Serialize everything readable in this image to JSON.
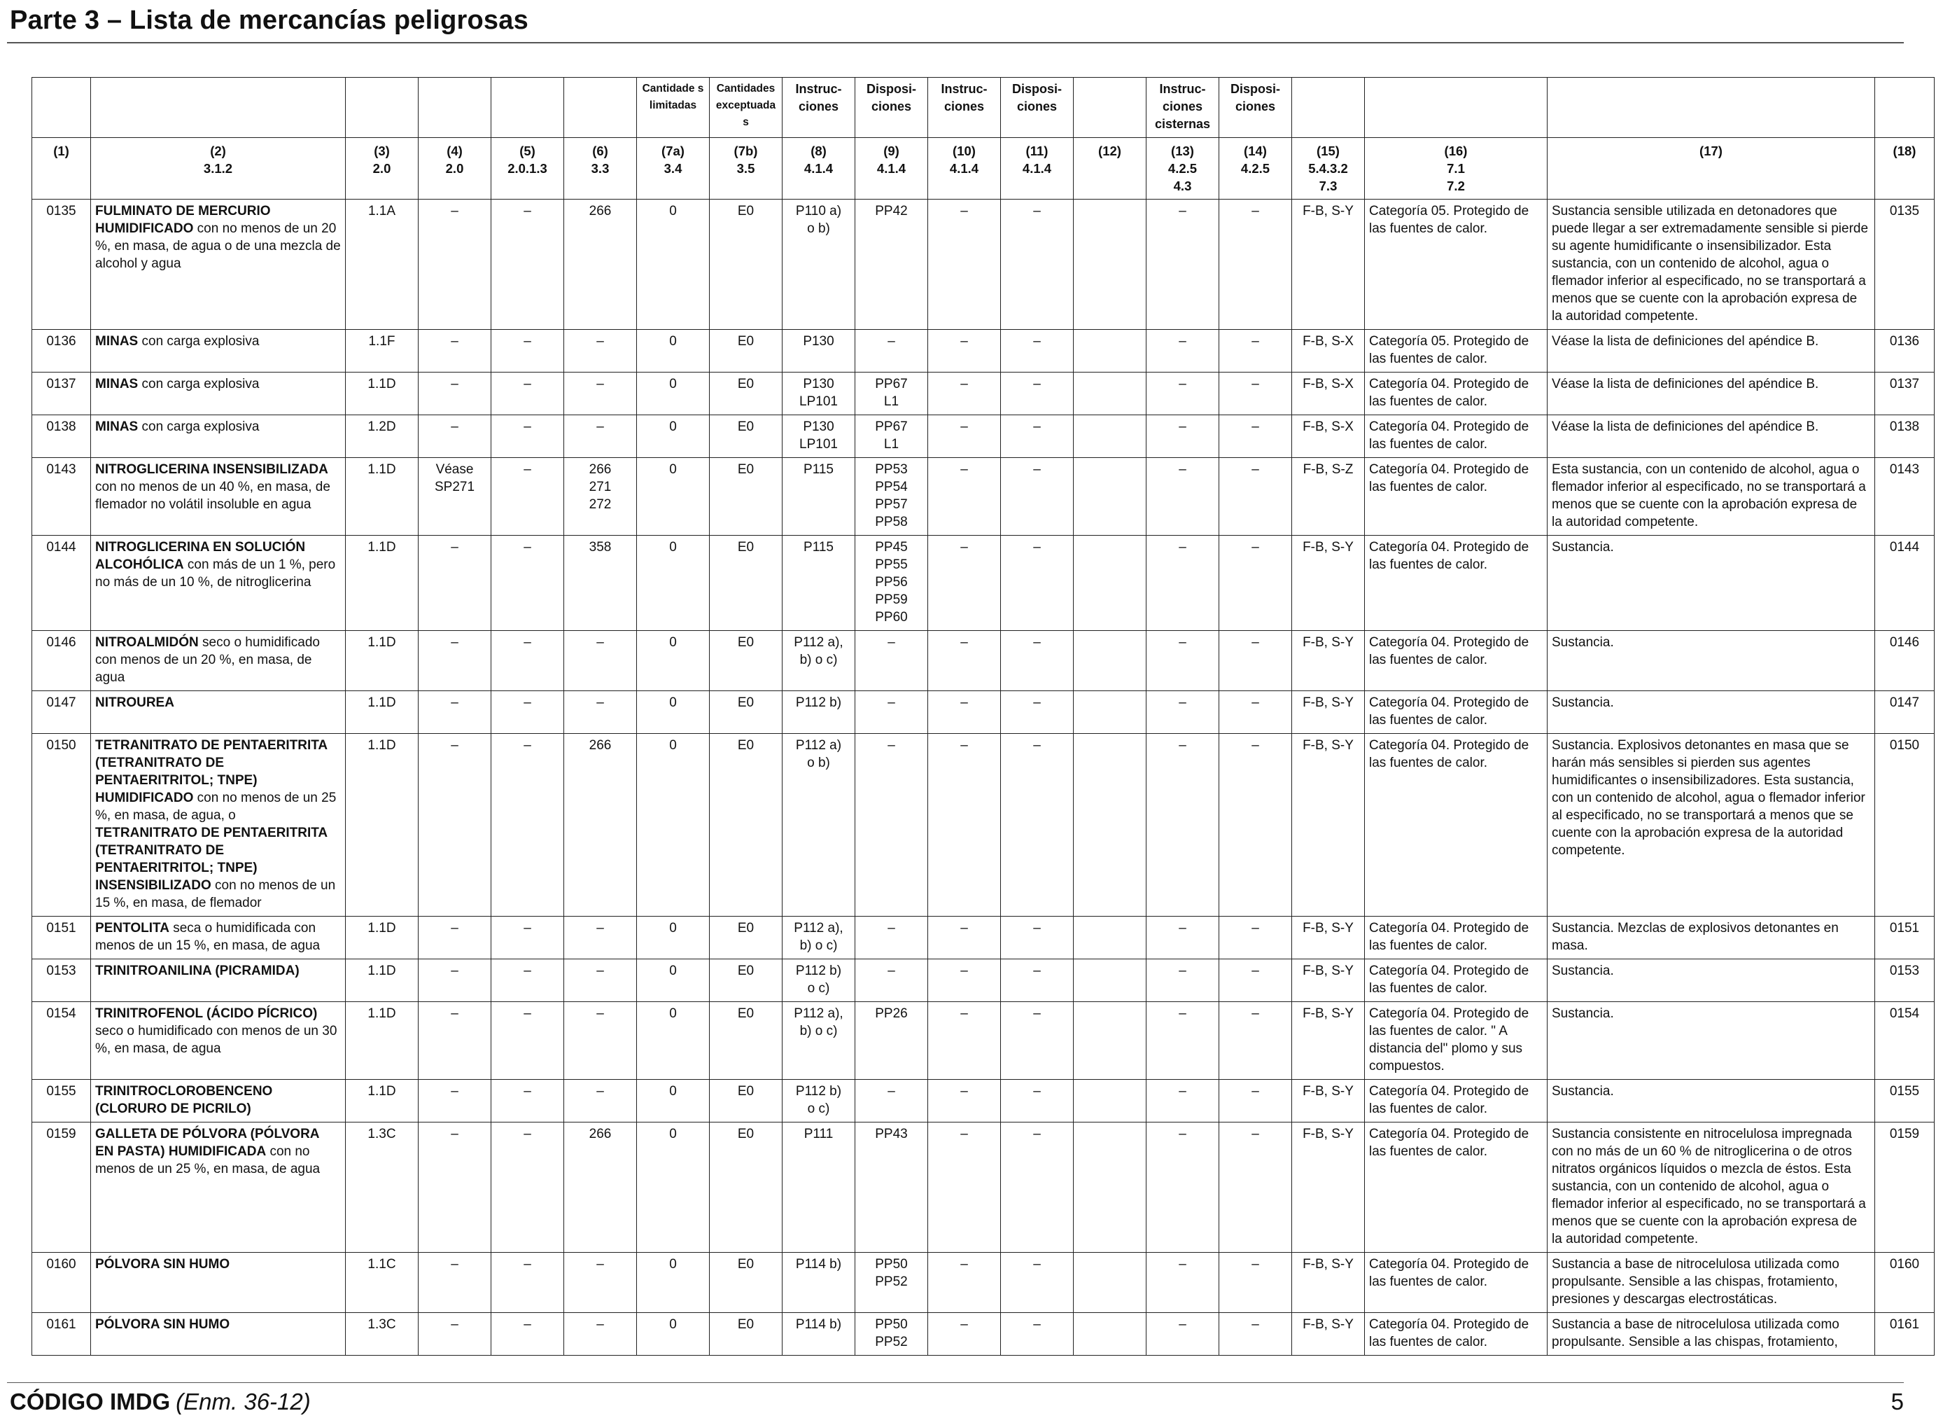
{
  "page": {
    "title": "Parte 3 – Lista de mercancías peligrosas",
    "footer_code": "CÓDIGO IMDG",
    "footer_amendment": "(Enm. 36-12)",
    "page_number": "5"
  },
  "table": {
    "header_titles": [
      "",
      "",
      "",
      "",
      "",
      "",
      "Cantidade s limitadas",
      "Cantidades exceptuadas",
      "Instruc- ciones",
      "Disposi- ciones",
      "Instruc- ciones",
      "Disposi- ciones",
      "",
      "Instruc- ciones cisternas",
      "Disposi- ciones",
      "",
      "",
      "",
      ""
    ],
    "header_numbers": [
      "(1)",
      "(2)\n3.1.2",
      "(3)\n2.0",
      "(4)\n2.0",
      "(5)\n2.0.1.3",
      "(6)\n3.3",
      "(7a)\n3.4",
      "(7b)\n3.5",
      "(8)\n4.1.4",
      "(9)\n4.1.4",
      "(10)\n4.1.4",
      "(11)\n4.1.4",
      "(12)",
      "(13)\n4.2.5\n4.3",
      "(14)\n4.2.5",
      "(15)\n5.4.3.2\n7.3",
      "(16)\n7.1\n7.2",
      "(17)",
      "(18)"
    ],
    "rows": [
      {
        "un": "0135",
        "name_bold": "FULMINATO DE MERCURIO HUMIDIFICADO",
        "name_rest": " con no menos de un 20 %, en masa, de agua o de una mezcla de alcohol y agua",
        "cls": "1.1A",
        "sub": "–",
        "mp": "–",
        "sp": "266",
        "lq": "0",
        "eq": "E0",
        "pi": "P110 a)\no b)",
        "pp": "PP42",
        "ibc": "–",
        "ibcp": "–",
        "c12": "",
        "tank": "–",
        "tankp": "–",
        "ems": "F-B, S-Y",
        "stow": "Categoría 05. Protegido de las fuentes de calor.",
        "props": "Sustancia sensible utilizada en detonadores que puede llegar a ser extremadamente sensible si pierde su agente humidificante o insensibilizador. Esta sustancia, con un contenido de alcohol, agua o flemador inferior al especificado, no se transportará a menos que se cuente con la aprobación expresa de la autoridad competente.",
        "un2": "0135"
      },
      {
        "un": "0136",
        "name_bold": "MINAS",
        "name_rest": " con carga explosiva",
        "cls": "1.1F",
        "sub": "–",
        "mp": "–",
        "sp": "–",
        "lq": "0",
        "eq": "E0",
        "pi": "P130",
        "pp": "–",
        "ibc": "–",
        "ibcp": "–",
        "c12": "",
        "tank": "–",
        "tankp": "–",
        "ems": "F-B, S-X",
        "stow": "Categoría 05. Protegido de las fuentes de calor.",
        "props": "Véase la lista de definiciones del apéndice B.",
        "un2": "0136"
      },
      {
        "un": "0137",
        "name_bold": "MINAS",
        "name_rest": " con carga explosiva",
        "cls": "1.1D",
        "sub": "–",
        "mp": "–",
        "sp": "–",
        "lq": "0",
        "eq": "E0",
        "pi": "P130\nLP101",
        "pp": "PP67\nL1",
        "ibc": "–",
        "ibcp": "–",
        "c12": "",
        "tank": "–",
        "tankp": "–",
        "ems": "F-B, S-X",
        "stow": "Categoría 04. Protegido de las fuentes de calor.",
        "props": "Véase la lista de definiciones del apéndice B.",
        "un2": "0137"
      },
      {
        "un": "0138",
        "name_bold": "MINAS",
        "name_rest": " con carga explosiva",
        "cls": "1.2D",
        "sub": "–",
        "mp": "–",
        "sp": "–",
        "lq": "0",
        "eq": "E0",
        "pi": "P130\nLP101",
        "pp": "PP67\nL1",
        "ibc": "–",
        "ibcp": "–",
        "c12": "",
        "tank": "–",
        "tankp": "–",
        "ems": "F-B, S-X",
        "stow": "Categoría 04. Protegido de las fuentes de calor.",
        "props": "Véase la lista de definiciones del apéndice B.",
        "un2": "0138"
      },
      {
        "un": "0143",
        "name_bold": "NITROGLICERINA INSENSIBILIZADA",
        "name_rest": " con no menos de un 40 %, en masa, de flemador no volátil insoluble en agua",
        "cls": "1.1D",
        "sub": "Véase\nSP271",
        "mp": "–",
        "sp": "266\n271\n272",
        "lq": "0",
        "eq": "E0",
        "pi": "P115",
        "pp": "PP53\nPP54\nPP57\nPP58",
        "ibc": "–",
        "ibcp": "–",
        "c12": "",
        "tank": "–",
        "tankp": "–",
        "ems": "F-B, S-Z",
        "stow": "Categoría 04. Protegido de las fuentes de calor.",
        "props": "Esta sustancia, con un contenido de alcohol, agua o flemador inferior al especificado, no se transportará a menos que se cuente con la aprobación expresa de la autoridad competente.",
        "un2": "0143"
      },
      {
        "un": "0144",
        "name_bold": "NITROGLICERINA EN SOLUCIÓN ALCOHÓLICA",
        "name_rest": " con más de un 1 %, pero no más de un 10 %, de nitroglicerina",
        "cls": "1.1D",
        "sub": "–",
        "mp": "–",
        "sp": "358",
        "lq": "0",
        "eq": "E0",
        "pi": "P115",
        "pp": "PP45\nPP55\nPP56\nPP59\nPP60",
        "ibc": "–",
        "ibcp": "–",
        "c12": "",
        "tank": "–",
        "tankp": "–",
        "ems": "F-B, S-Y",
        "stow": "Categoría 04. Protegido de las fuentes de calor.",
        "props": "Sustancia.",
        "un2": "0144"
      },
      {
        "un": "0146",
        "name_bold": "NITROALMIDÓN",
        "name_rest": " seco o humidificado con menos de un 20 %, en masa, de agua",
        "cls": "1.1D",
        "sub": "–",
        "mp": "–",
        "sp": "–",
        "lq": "0",
        "eq": "E0",
        "pi": "P112 a),\nb) o c)",
        "pp": "–",
        "ibc": "–",
        "ibcp": "–",
        "c12": "",
        "tank": "–",
        "tankp": "–",
        "ems": "F-B, S-Y",
        "stow": "Categoría 04. Protegido de las fuentes de calor.",
        "props": "Sustancia.",
        "un2": "0146"
      },
      {
        "un": "0147",
        "name_bold": "NITROUREA",
        "name_rest": "",
        "cls": "1.1D",
        "sub": "–",
        "mp": "–",
        "sp": "–",
        "lq": "0",
        "eq": "E0",
        "pi": "P112 b)",
        "pp": "–",
        "ibc": "–",
        "ibcp": "–",
        "c12": "",
        "tank": "–",
        "tankp": "–",
        "ems": "F-B, S-Y",
        "stow": "Categoría 04. Protegido de las fuentes de calor.",
        "props": "Sustancia.",
        "un2": "0147"
      },
      {
        "un": "0150",
        "name_bold": "TETRANITRATO DE PENTAERITRITA (TETRANITRATO DE PENTAERITRITOL; TNPE) HUMIDIFICADO",
        "name_rest": " con no menos de un 25 %, en masa, de agua, o ",
        "name_bold2": "TETRANITRATO DE PENTAERITRITA (TETRANITRATO DE PENTAERITRITOL; TNPE) INSENSIBILIZADO",
        "name_rest2": " con no menos de un 15 %, en masa, de flemador",
        "cls": "1.1D",
        "sub": "–",
        "mp": "–",
        "sp": "266",
        "lq": "0",
        "eq": "E0",
        "pi": "P112 a)\no b)",
        "pp": "–",
        "ibc": "–",
        "ibcp": "–",
        "c12": "",
        "tank": "–",
        "tankp": "–",
        "ems": "F-B, S-Y",
        "stow": "Categoría 04. Protegido de las fuentes de calor.",
        "props": "Sustancia. Explosivos detonantes en masa que se harán más sensibles si pierden sus agentes humidificantes o insensibilizadores. Esta sustancia, con un contenido de alcohol, agua o flemador inferior al especificado, no se transportará a menos que se cuente con la aprobación expresa de la autoridad competente.",
        "un2": "0150"
      },
      {
        "un": "0151",
        "name_bold": "PENTOLITA",
        "name_rest": " seca o humidificada con menos de un 15 %, en masa, de agua",
        "cls": "1.1D",
        "sub": "–",
        "mp": "–",
        "sp": "–",
        "lq": "0",
        "eq": "E0",
        "pi": "P112 a),\nb) o c)",
        "pp": "–",
        "ibc": "–",
        "ibcp": "–",
        "c12": "",
        "tank": "–",
        "tankp": "–",
        "ems": "F-B, S-Y",
        "stow": "Categoría 04. Protegido de las fuentes de calor.",
        "props": "Sustancia. Mezclas de explosivos detonantes en masa.",
        "un2": "0151"
      },
      {
        "un": "0153",
        "name_bold": "TRINITROANILINA (PICRAMIDA)",
        "name_rest": "",
        "cls": "1.1D",
        "sub": "–",
        "mp": "–",
        "sp": "–",
        "lq": "0",
        "eq": "E0",
        "pi": "P112 b)\no c)",
        "pp": "–",
        "ibc": "–",
        "ibcp": "–",
        "c12": "",
        "tank": "–",
        "tankp": "–",
        "ems": "F-B, S-Y",
        "stow": "Categoría 04. Protegido de las fuentes de calor.",
        "props": "Sustancia.",
        "un2": "0153"
      },
      {
        "un": "0154",
        "name_bold": "TRINITROFENOL (ÁCIDO PÍCRICO)",
        "name_rest": " seco o humidificado con menos de un 30 %, en masa, de agua",
        "cls": "1.1D",
        "sub": "–",
        "mp": "–",
        "sp": "–",
        "lq": "0",
        "eq": "E0",
        "pi": "P112 a),\nb) o c)",
        "pp": "PP26",
        "ibc": "–",
        "ibcp": "–",
        "c12": "",
        "tank": "–",
        "tankp": "–",
        "ems": "F-B, S-Y",
        "stow": "Categoría 04. Protegido de las fuentes de calor. \" A distancia del\" plomo y sus compuestos.",
        "props": "Sustancia.",
        "un2": "0154"
      },
      {
        "un": "0155",
        "name_bold": "TRINITROCLOROBENCENO (CLORURO DE PICRILO)",
        "name_rest": "",
        "cls": "1.1D",
        "sub": "–",
        "mp": "–",
        "sp": "–",
        "lq": "0",
        "eq": "E0",
        "pi": "P112 b)\no c)",
        "pp": "–",
        "ibc": "–",
        "ibcp": "–",
        "c12": "",
        "tank": "–",
        "tankp": "–",
        "ems": "F-B, S-Y",
        "stow": "Categoría 04. Protegido de las fuentes de calor.",
        "props": "Sustancia.",
        "un2": "0155"
      },
      {
        "un": "0159",
        "name_bold": "GALLETA DE PÓLVORA (PÓLVORA EN PASTA) HUMIDIFICADA",
        "name_rest": " con no menos de un 25 %, en masa, de agua",
        "cls": "1.3C",
        "sub": "–",
        "mp": "–",
        "sp": "266",
        "lq": "0",
        "eq": "E0",
        "pi": "P111",
        "pp": "PP43",
        "ibc": "–",
        "ibcp": "–",
        "c12": "",
        "tank": "–",
        "tankp": "–",
        "ems": "F-B, S-Y",
        "stow": "Categoría 04. Protegido de las fuentes de calor.",
        "props": "Sustancia consistente en nitrocelulosa impregnada con no más de un 60 % de nitroglicerina o de otros nitratos orgánicos líquidos o mezcla de éstos. Esta sustancia, con un contenido de alcohol, agua o flemador inferior al especificado, no se transportará a menos que se cuente con la aprobación expresa de la autoridad competente.",
        "un2": "0159"
      },
      {
        "un": "0160",
        "name_bold": "PÓLVORA SIN HUMO",
        "name_rest": "",
        "cls": "1.1C",
        "sub": "–",
        "mp": "–",
        "sp": "–",
        "lq": "0",
        "eq": "E0",
        "pi": "P114 b)",
        "pp": "PP50\nPP52",
        "ibc": "–",
        "ibcp": "–",
        "c12": "",
        "tank": "–",
        "tankp": "–",
        "ems": "F-B, S-Y",
        "stow": "Categoría 04. Protegido de las fuentes de calor.",
        "props": "Sustancia a base de nitrocelulosa utilizada como propulsante. Sensible a las chispas, frotamiento, presiones y descargas electrostáticas.",
        "un2": "0160"
      },
      {
        "un": "0161",
        "name_bold": "PÓLVORA SIN HUMO",
        "name_rest": "",
        "cls": "1.3C",
        "sub": "–",
        "mp": "–",
        "sp": "–",
        "lq": "0",
        "eq": "E0",
        "pi": "P114 b)",
        "pp": "PP50\nPP52",
        "ibc": "–",
        "ibcp": "–",
        "c12": "",
        "tank": "–",
        "tankp": "–",
        "ems": "F-B, S-Y",
        "stow": "Categoría 04. Protegido de las fuentes de calor.",
        "props": "Sustancia a base de nitrocelulosa utilizada como propulsante. Sensible a las chispas, frotamiento,",
        "un2": "0161"
      }
    ]
  }
}
